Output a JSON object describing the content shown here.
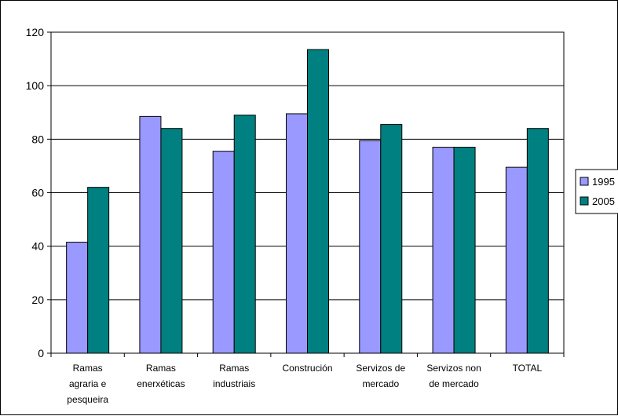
{
  "chart_data": {
    "type": "bar",
    "title": "",
    "xlabel": "",
    "ylabel": "",
    "ylim": [
      0,
      120
    ],
    "yticks": [
      0,
      20,
      40,
      60,
      80,
      100,
      120
    ],
    "grid": true,
    "legend_position": "right",
    "categories": [
      [
        "Ramas",
        "agraria e",
        "pesqueira"
      ],
      [
        "Ramas",
        "enerxéticas"
      ],
      [
        "Ramas",
        "industriais"
      ],
      [
        "Construción"
      ],
      [
        "Servizos de",
        "mercado"
      ],
      [
        "Servizos non",
        "de mercado"
      ],
      [
        "TOTAL"
      ]
    ],
    "series": [
      {
        "name": "1995",
        "color": "#9999ff",
        "values": [
          41.5,
          88.5,
          75.5,
          89.5,
          79.5,
          77,
          69.5
        ]
      },
      {
        "name": "2005",
        "color": "#008080",
        "values": [
          62,
          84,
          89,
          113.5,
          85.5,
          77,
          84
        ]
      }
    ]
  }
}
